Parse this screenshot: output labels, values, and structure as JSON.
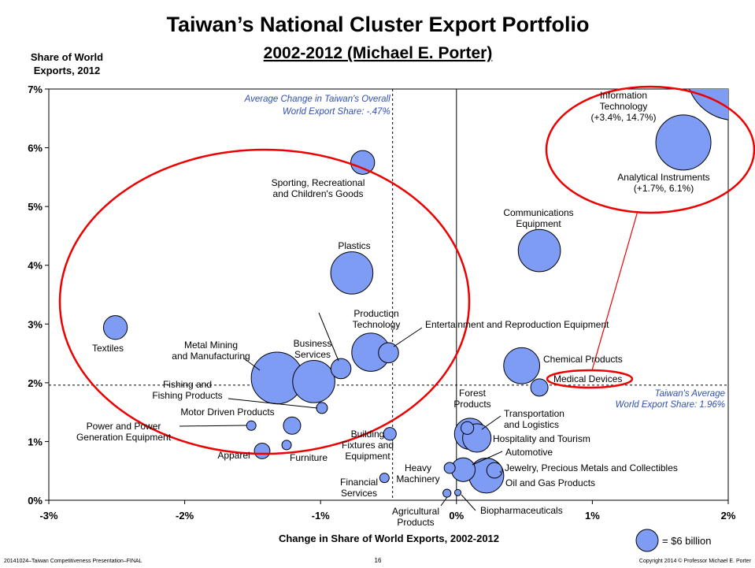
{
  "chart_data": {
    "type": "bubble",
    "title": "Taiwan’s National Cluster Export Portfolio",
    "subtitle": "2002-2012 (Michael E. Porter)",
    "y_label": [
      "Share of World",
      "Exports, 2012"
    ],
    "x_label": "Change in Share of World Exports, 2002-2012",
    "color": "#7f9cf5",
    "xlim": [
      -3,
      2
    ],
    "ylim": [
      0,
      7
    ],
    "xticks": [
      {
        "value": -3,
        "label": "-3%"
      },
      {
        "value": -2,
        "label": "-2%"
      },
      {
        "value": -1,
        "label": "-1%"
      },
      {
        "value": 0,
        "label": "0%"
      },
      {
        "value": 1,
        "label": "1%"
      },
      {
        "value": 2,
        "label": "2%"
      }
    ],
    "yticks": [
      {
        "value": 0,
        "label": "0%"
      },
      {
        "value": 1,
        "label": "1%"
      },
      {
        "value": 2,
        "label": "2%"
      },
      {
        "value": 3,
        "label": "3%"
      },
      {
        "value": 4,
        "label": "4%"
      },
      {
        "value": 5,
        "label": "5%"
      },
      {
        "value": 6,
        "label": "6%"
      },
      {
        "value": 7,
        "label": "7%"
      }
    ],
    "x": [
      2.05,
      1.67,
      0.61,
      -0.69,
      -0.77,
      -2.51,
      -0.63,
      -0.5,
      -0.85,
      -1.32,
      -1.05,
      -0.99,
      0.48,
      0.61,
      -1.21,
      -1.51,
      -1.25,
      -1.43,
      -0.49,
      -0.53,
      -0.07,
      0.01,
      0.08,
      0.1,
      0.15,
      0.05,
      -0.05,
      0.22,
      0.28
    ],
    "values": [
      7.3,
      6.09,
      4.25,
      5.75,
      3.87,
      2.94,
      2.52,
      2.51,
      2.24,
      2.08,
      2.02,
      1.57,
      2.29,
      1.92,
      1.27,
      1.27,
      0.94,
      0.84,
      1.13,
      0.38,
      0.12,
      0.13,
      1.23,
      1.13,
      1.06,
      0.52,
      0.55,
      0.42,
      0.51
    ],
    "sizes": [
      118,
      37.5,
      22,
      7,
      22,
      7,
      18,
      5,
      5,
      33,
      22,
      1.5,
      16,
      3.7,
      3.7,
      1.1,
      1.1,
      3,
      2,
      1.1,
      0.8,
      0.5,
      2,
      12,
      10,
      7,
      1.5,
      15,
      3
    ],
    "labels": [
      [
        "Information",
        "Technology",
        "(+3.4%, 14.7%)"
      ],
      [
        "Analytical Instruments",
        "(+1.7%, 6.1%)"
      ],
      [
        "Communications",
        "Equipment"
      ],
      [
        "Sporting, Recreational",
        "and Children's Goods"
      ],
      [
        "Plastics"
      ],
      [
        "Textiles"
      ],
      [
        "Production",
        "Technology"
      ],
      [
        "Entertainment and Reproduction Equipment"
      ],
      [
        "Business",
        "Services"
      ],
      [
        "Metal Mining",
        "and Manufacturing"
      ],
      null,
      [
        "Fishing and",
        "Fishing Products"
      ],
      [
        "Chemical Products"
      ],
      [
        "Medical Devices"
      ],
      [
        "Motor Driven Products"
      ],
      [
        "Power and Power",
        "Generation Equipment"
      ],
      [
        "Furniture"
      ],
      [
        "Apparel"
      ],
      [
        "Building",
        "Fixtures and",
        "Equipment"
      ],
      [
        "Financial",
        "Services"
      ],
      [
        "Agricultural",
        "Products"
      ],
      [
        "Biopharmaceuticals"
      ],
      [
        "Forest",
        "Products"
      ],
      [
        "Transportation",
        "and Logistics"
      ],
      [
        "Hospitality and Tourism"
      ],
      [
        "Automotive"
      ],
      [
        "Heavy",
        "Machinery"
      ],
      [
        "Oil and Gas Products"
      ],
      [
        "Jewelry, Precious Metals and Collectibles"
      ]
    ],
    "ref_lines": {
      "x": -0.47,
      "y": 1.96
    },
    "ref_x_note": [
      "Average Change in Taiwan's Overall",
      "World Export Share: -.47%"
    ],
    "ref_y_note": [
      "Taiwan's Average",
      "World Export Share: 1.96%"
    ],
    "size_legend": {
      "value": 6,
      "label": "= $6 billion"
    },
    "footer_left": "20141024–Taiwan Competitiveness Presentation–FINAL",
    "footer_center": "16",
    "footer_right": "Copyright 2014 © Professor Michael E. Porter"
  }
}
